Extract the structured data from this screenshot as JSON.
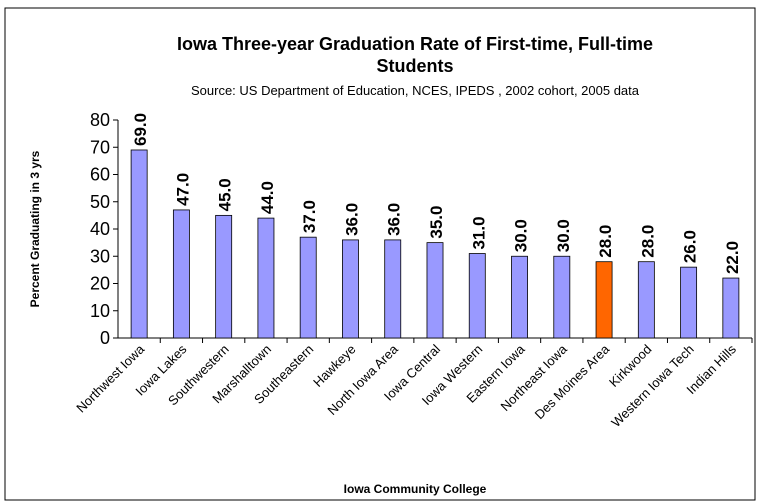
{
  "chart_data": {
    "type": "bar",
    "title": "Iowa Three-year Graduation Rate of First-time, Full-time Students",
    "subtitle": "Source: US Department of Education, NCES, IPEDS , 2002 cohort, 2005 data",
    "x_label": "Iowa Community College",
    "y_label": "Percent Graduating in 3 yrs",
    "categories": [
      "Northwest Iowa",
      "Iowa Lakes",
      "Southwestern",
      "Marshalltown",
      "Southeastern",
      "Hawkeye",
      "North Iowa Area",
      "Iowa Central",
      "Iowa Western",
      "Eastern Iowa",
      "Northeast Iowa",
      "Des Moines Area",
      "Kirkwood",
      "Western Iowa Tech",
      "Indian Hills"
    ],
    "values": [
      69,
      47,
      45,
      44,
      37,
      36,
      36,
      35,
      31,
      30,
      30,
      28,
      28,
      26,
      22
    ],
    "value_labels": [
      "69.0",
      "47.0",
      "45.0",
      "44.0",
      "37.0",
      "36.0",
      "36.0",
      "35.0",
      "31.0",
      "30.0",
      "30.0",
      "28.0",
      "28.0",
      "26.0",
      "22.0"
    ],
    "colors": [
      "#9999ff",
      "#9999ff",
      "#9999ff",
      "#9999ff",
      "#9999ff",
      "#9999ff",
      "#9999ff",
      "#9999ff",
      "#9999ff",
      "#9999ff",
      "#9999ff",
      "#ff6600",
      "#9999ff",
      "#9999ff",
      "#9999ff"
    ],
    "ylim": [
      0,
      80
    ],
    "yticks": [
      0,
      10,
      20,
      30,
      40,
      50,
      60,
      70,
      80
    ],
    "grid": false
  }
}
